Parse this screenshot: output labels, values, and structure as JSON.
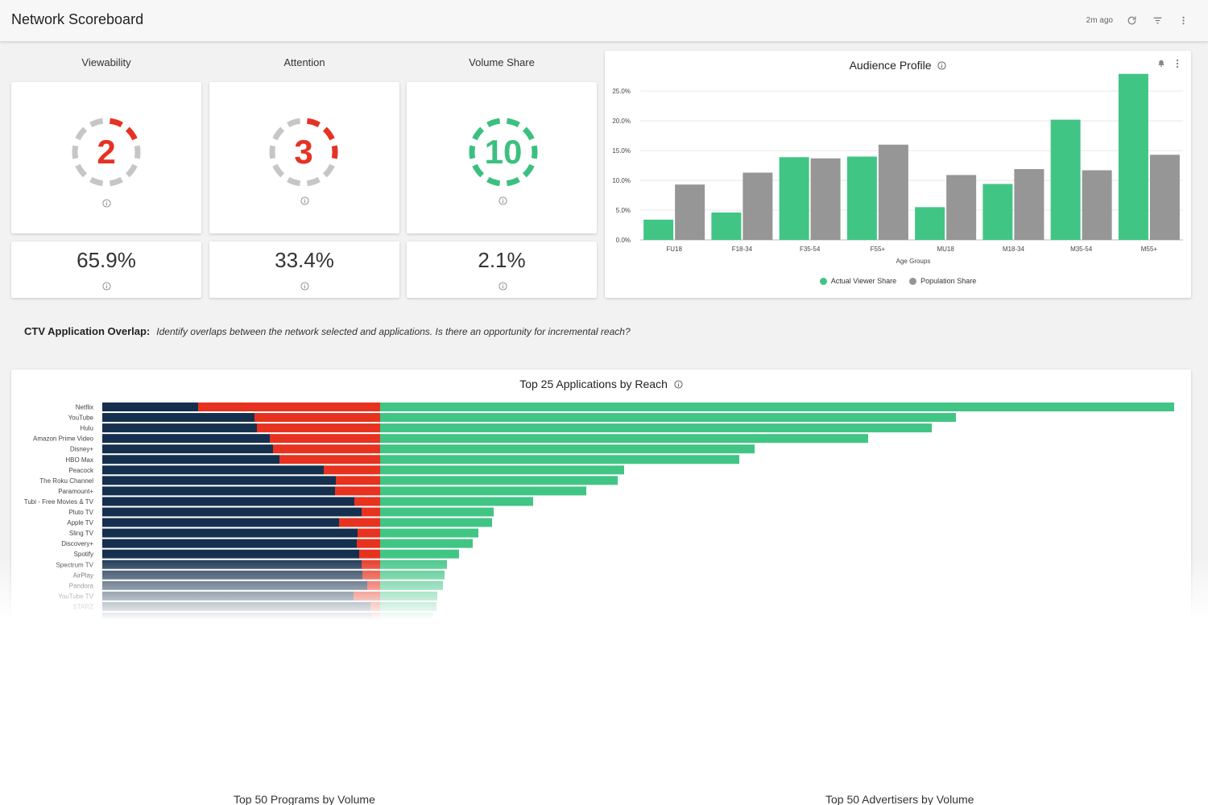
{
  "header": {
    "title": "Network Scoreboard",
    "updated": "2m ago"
  },
  "kpis": [
    {
      "label": "Viewability",
      "score": "2",
      "score_value": 2,
      "color": "#e53224",
      "pct": "65.9%"
    },
    {
      "label": "Attention",
      "score": "3",
      "score_value": 3,
      "color": "#e53224",
      "pct": "33.4%"
    },
    {
      "label": "Volume Share",
      "score": "10",
      "score_value": 10,
      "color": "#3cc07f",
      "pct": "2.1%"
    }
  ],
  "audience": {
    "title": "Audience Profile",
    "chart_data": {
      "type": "bar",
      "title": "Audience Profile",
      "xlabel": "Age Groups",
      "ylabel": "",
      "categories": [
        "FU18",
        "F18-34",
        "F35-54",
        "F55+",
        "MU18",
        "M18-34",
        "M35-54",
        "M55+"
      ],
      "series": [
        {
          "name": "Actual Viewer Share",
          "color": "#41c585",
          "values": [
            3.4,
            4.6,
            13.9,
            14.0,
            5.5,
            9.4,
            20.2,
            27.9
          ]
        },
        {
          "name": "Population Share",
          "color": "#969696",
          "values": [
            9.3,
            11.3,
            13.7,
            16.0,
            10.9,
            11.9,
            11.7,
            14.3
          ]
        }
      ],
      "yticks": [
        "0.0%",
        "5.0%",
        "10.0%",
        "15.0%",
        "20.0%",
        "25.0%"
      ],
      "ylim": [
        0,
        28
      ],
      "grid": true,
      "legend": "bottom"
    }
  },
  "overlap": {
    "heading": "CTV Application Overlap:",
    "description": "Identify overlaps between the network selected and applications. Is there an opportunity for incremental reach?"
  },
  "apps": {
    "title": "Top 25 Applications by Reach",
    "chart_data": {
      "type": "bar",
      "orientation": "horizontal",
      "categories": [
        "Netflix",
        "YouTube",
        "Hulu",
        "Amazon Prime Video",
        "Disney+",
        "HBO Max",
        "Peacock",
        "The Roku Channel",
        "Paramount+",
        "Tubi - Free Movies & TV",
        "Pluto TV",
        "Apple TV",
        "Sling TV",
        "Discovery+",
        "Spotify",
        "Spectrum TV",
        "AirPlay",
        "Pandora",
        "YouTube TV",
        "STARZ",
        ""
      ],
      "series": [
        {
          "color": "#15304e",
          "values": [
            119,
            189,
            192,
            208,
            212,
            220,
            275,
            290,
            289,
            313,
            322,
            294,
            317,
            316,
            319,
            322,
            323,
            329,
            312,
            333,
            335
          ]
        },
        {
          "color": "#e6321f",
          "values": [
            226,
            156,
            153,
            137,
            133,
            125,
            70,
            55,
            56,
            32,
            23,
            51,
            28,
            29,
            26,
            23,
            22,
            16,
            33,
            12,
            10
          ]
        },
        {
          "color": "#41c585",
          "values": [
            986,
            715,
            685,
            606,
            465,
            446,
            303,
            295,
            256,
            190,
            141,
            139,
            122,
            115,
            98,
            83,
            80,
            78,
            71,
            70,
            66
          ]
        }
      ]
    }
  },
  "bottom_titles": [
    "Top 50 Programs by Volume",
    "Top 50 Advertisers by Volume"
  ]
}
